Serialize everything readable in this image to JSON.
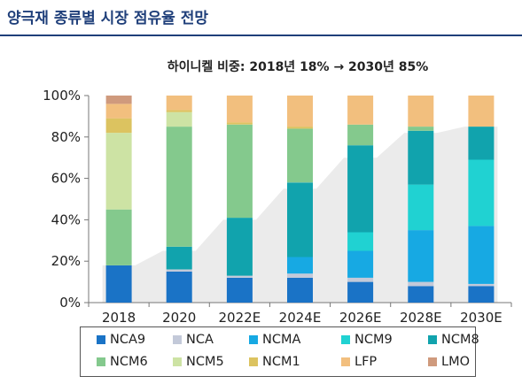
{
  "page_title": "양극재 종류별 시장 점유율 전망",
  "chart_data": {
    "type": "bar",
    "stacked": true,
    "title": "하이니켈 비중: 2018년 18% → 2030년 85%",
    "xlabel": "",
    "ylabel": "",
    "ylim": [
      0,
      100
    ],
    "ytick_labels": [
      "0%",
      "20%",
      "40%",
      "60%",
      "80%",
      "100%"
    ],
    "categories": [
      "2018",
      "2020",
      "2022E",
      "2024E",
      "2026E",
      "2028E",
      "2030E"
    ],
    "series": [
      {
        "name": "NCA9",
        "color": "#1a73c6",
        "values": [
          18,
          15,
          12,
          12,
          10,
          8,
          8
        ]
      },
      {
        "name": "NCA",
        "color": "#c3c9d9",
        "values": [
          0,
          1,
          1,
          2,
          2,
          2,
          1
        ]
      },
      {
        "name": "NCMA",
        "color": "#17a9e3",
        "values": [
          0,
          0,
          0,
          8,
          13,
          25,
          28
        ]
      },
      {
        "name": "NCM9",
        "color": "#20d2d2",
        "values": [
          0,
          0,
          0,
          0,
          9,
          22,
          32
        ]
      },
      {
        "name": "NCM8",
        "color": "#11a3ad",
        "values": [
          0,
          11,
          28,
          36,
          42,
          26,
          16
        ]
      },
      {
        "name": "NCM6",
        "color": "#84c98d",
        "values": [
          27,
          58,
          45,
          26,
          10,
          2,
          0
        ]
      },
      {
        "name": "NCM5",
        "color": "#cde3a4",
        "values": [
          37,
          7,
          0,
          0,
          0,
          0,
          0
        ]
      },
      {
        "name": "NCM1",
        "color": "#dcc360",
        "values": [
          7,
          1,
          1,
          1,
          0,
          0,
          0
        ]
      },
      {
        "name": "LFP",
        "color": "#f2bf7e",
        "values": [
          7,
          7,
          13,
          15,
          14,
          15,
          15
        ]
      },
      {
        "name": "LMO",
        "color": "#cf9a7d",
        "values": [
          4,
          0,
          0,
          0,
          0,
          0,
          0
        ]
      }
    ],
    "background_area": {
      "color": "#ebebeb",
      "values": [
        18,
        25,
        40,
        55,
        70,
        82,
        85
      ]
    },
    "grid": false,
    "legend_position": "bottom"
  }
}
